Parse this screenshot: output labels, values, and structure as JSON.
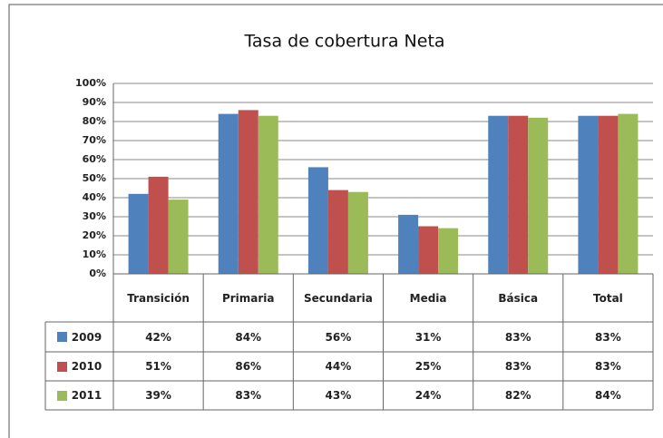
{
  "chart_data": {
    "type": "bar",
    "title": "Tasa de cobertura Neta",
    "categories": [
      "Transición",
      "Primaria",
      "Secundaria",
      "Media",
      "Básica",
      "Total"
    ],
    "series": [
      {
        "name": "2009",
        "color": "#4f81bd",
        "values": [
          42,
          84,
          56,
          31,
          83,
          83
        ],
        "value_labels": [
          "42%",
          "84%",
          "56%",
          "31%",
          "83%",
          "83%"
        ]
      },
      {
        "name": "2010",
        "color": "#c0504d",
        "values": [
          51,
          86,
          44,
          25,
          83,
          83
        ],
        "value_labels": [
          "51%",
          "86%",
          "44%",
          "25%",
          "83%",
          "83%"
        ]
      },
      {
        "name": "2011",
        "color": "#9bbb59",
        "values": [
          39,
          83,
          43,
          24,
          82,
          84
        ],
        "value_labels": [
          "39%",
          "83%",
          "43%",
          "24%",
          "82%",
          "84%"
        ]
      }
    ],
    "ylim": [
      0,
      100
    ],
    "yticks": [
      {
        "value": 0,
        "label": "0%"
      },
      {
        "value": 10,
        "label": "10%"
      },
      {
        "value": 20,
        "label": "20%"
      },
      {
        "value": 30,
        "label": "30%"
      },
      {
        "value": 40,
        "label": "40%"
      },
      {
        "value": 50,
        "label": "50%"
      },
      {
        "value": 60,
        "label": "60%"
      },
      {
        "value": 70,
        "label": "70%"
      },
      {
        "value": 80,
        "label": "80%"
      },
      {
        "value": 90,
        "label": "90%"
      },
      {
        "value": 100,
        "label": "100%"
      }
    ],
    "grid": true
  }
}
